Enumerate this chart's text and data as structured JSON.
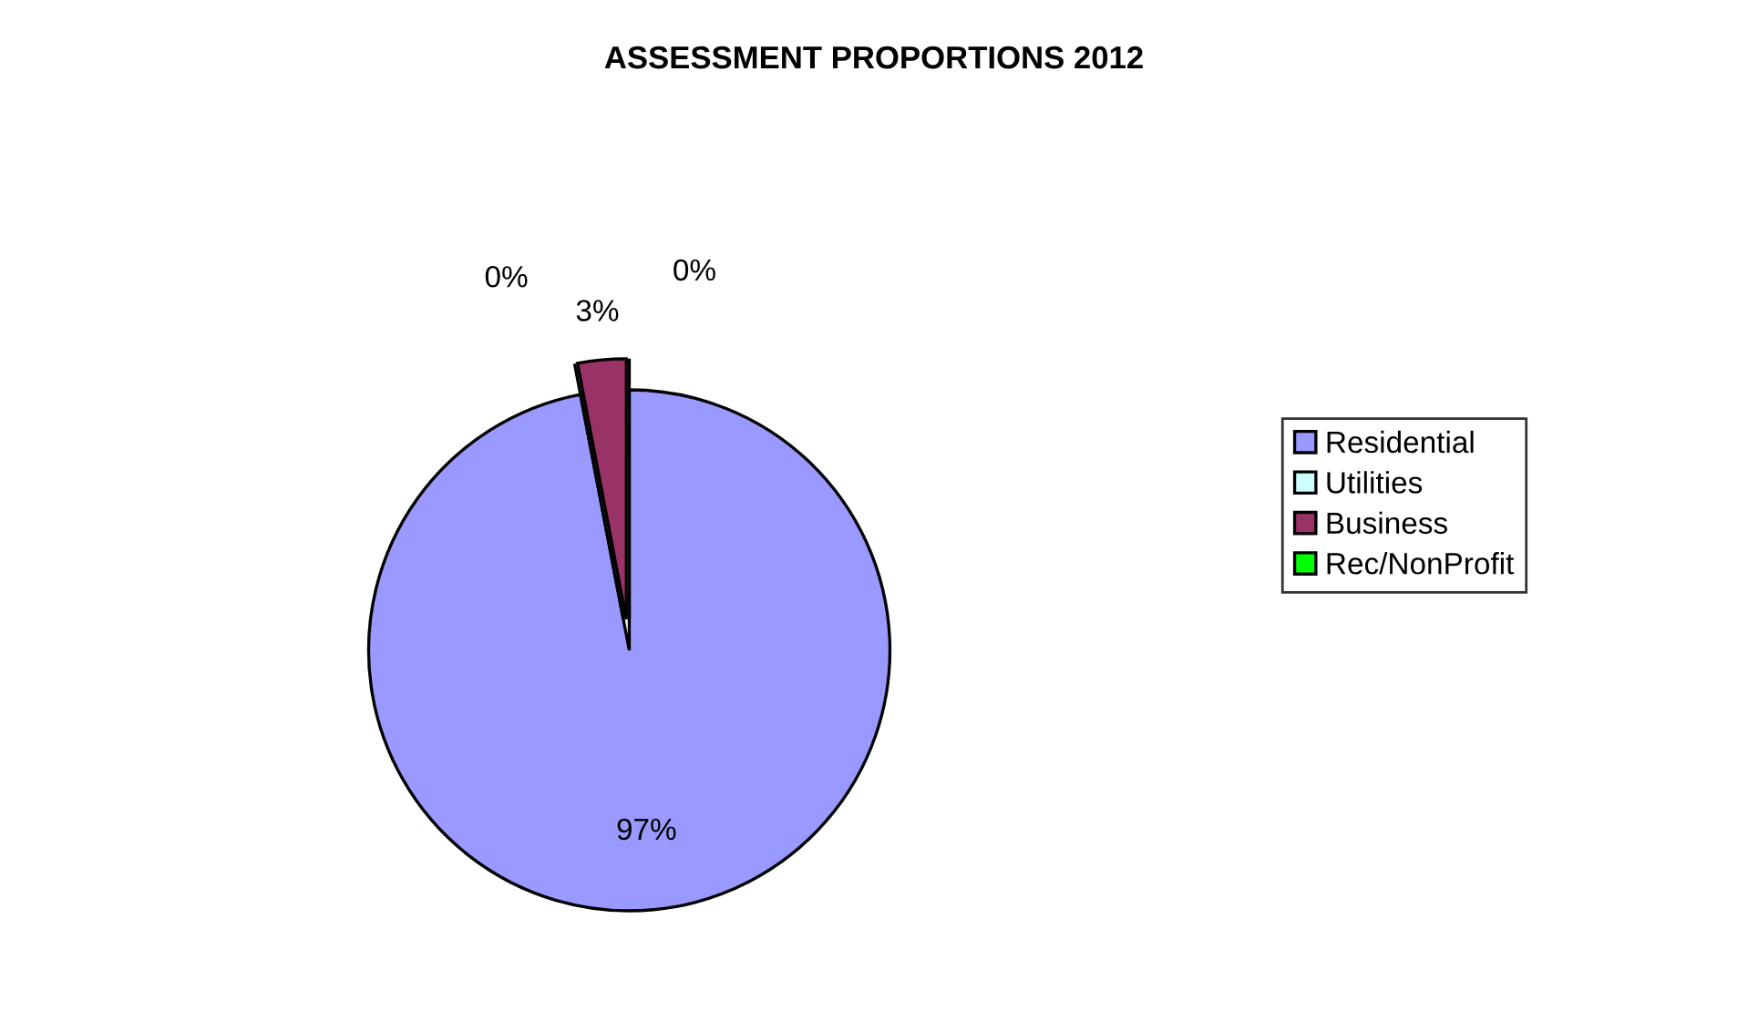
{
  "chart_data": {
    "type": "pie",
    "title": "ASSESSMENT PROPORTIONS 2012",
    "categories": [
      "Residential",
      "Utilities",
      "Business",
      "Rec/NonProfit"
    ],
    "values": [
      97,
      0,
      3,
      0
    ],
    "colors": [
      "#9999ff",
      "#ccffff",
      "#993366",
      "#00ff00"
    ],
    "value_labels": [
      "97%",
      "0%",
      "3%",
      "0%"
    ],
    "legend": "right"
  }
}
